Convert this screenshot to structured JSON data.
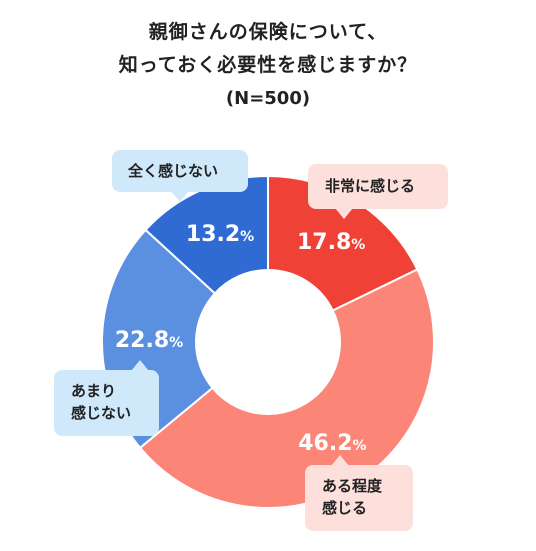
{
  "chart_data": {
    "type": "pie",
    "title_lines": [
      "親御さんの保険について、",
      "知っておく必要性を感じますか？"
    ],
    "subtitle": "(N=500)",
    "categories": [
      "非常に感じる",
      "ある程度感じる",
      "あまり感じない",
      "全く感じない"
    ],
    "values": [
      17.8,
      46.2,
      22.8,
      13.2
    ],
    "labels": [
      "17.8",
      "46.2",
      "22.8",
      "13.2"
    ],
    "unit": "%",
    "colors": [
      "#ef4136",
      "#fb8577",
      "#5b8fe0",
      "#2f6bd3"
    ],
    "donut": true
  },
  "callouts": {
    "very": "非常に感じる",
    "somewhat_line1": "ある程度",
    "somewhat_line2": "感じる",
    "little_line1": "あまり",
    "little_line2": "感じない",
    "none": "全く感じない"
  }
}
